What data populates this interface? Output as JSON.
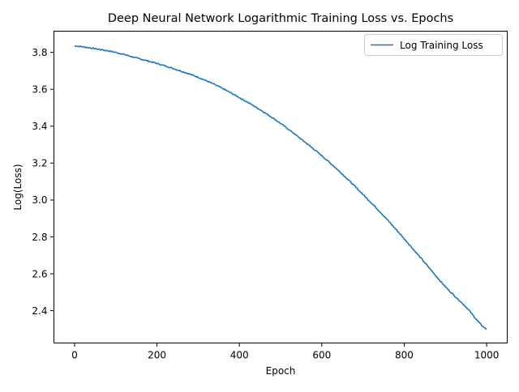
{
  "chart_data": {
    "type": "line",
    "title": "Deep Neural Network Logarithmic Training Loss vs. Epochs",
    "xlabel": "Epoch",
    "ylabel": "Log(Loss)",
    "xlim": [
      -50,
      1050
    ],
    "ylim": [
      2.225,
      3.915
    ],
    "xticks": [
      0,
      200,
      400,
      600,
      800,
      1000
    ],
    "xtick_labels": [
      "0",
      "200",
      "400",
      "600",
      "800",
      "1000"
    ],
    "yticks": [
      2.4,
      2.6,
      2.8,
      3.0,
      3.2,
      3.4,
      3.6,
      3.8
    ],
    "ytick_labels": [
      "2.4",
      "2.6",
      "2.8",
      "3.0",
      "3.2",
      "3.4",
      "3.6",
      "3.8"
    ],
    "grid": false,
    "legend_position": "top-right",
    "series": [
      {
        "name": "Log Training Loss",
        "color": "#1f77b4",
        "x": [
          0,
          50,
          100,
          150,
          200,
          250,
          300,
          350,
          400,
          450,
          500,
          550,
          600,
          650,
          700,
          750,
          800,
          850,
          900,
          950,
          1000
        ],
        "y": [
          3.835,
          3.82,
          3.8,
          3.77,
          3.74,
          3.705,
          3.665,
          3.615,
          3.555,
          3.49,
          3.415,
          3.33,
          3.24,
          3.14,
          3.03,
          2.915,
          2.79,
          2.66,
          2.53,
          2.42,
          2.3
        ]
      }
    ]
  }
}
